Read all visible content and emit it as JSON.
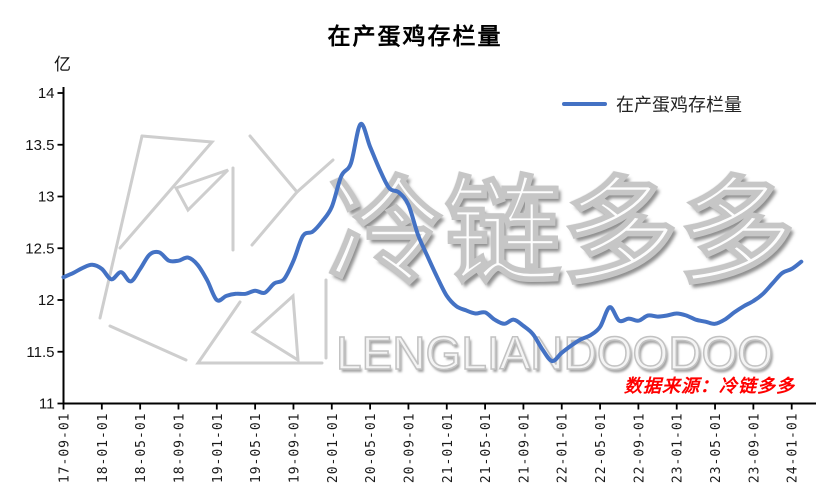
{
  "title": "在产蛋鸡存栏量",
  "y_unit": "亿",
  "legend_label": "在产蛋鸡存栏量",
  "source_note": "数据来源：冷链多多",
  "watermark": {
    "cn": "冷链多多",
    "en": "LENGLIANDOODOO"
  },
  "chart_data": {
    "type": "line",
    "title": "在产蛋鸡存栏量",
    "ylabel": "亿",
    "legend": [
      "在产蛋鸡存栏量"
    ],
    "legend_position": "top-right",
    "grid": false,
    "line_color": "#4472C4",
    "ylim": [
      11,
      14
    ],
    "yticks": [
      11,
      11.5,
      12,
      12.5,
      13,
      13.5,
      14
    ],
    "xtick_labels": [
      "17-09-01",
      "18-01-01",
      "18-05-01",
      "18-09-01",
      "19-01-01",
      "19-05-01",
      "19-09-01",
      "20-01-01",
      "20-05-01",
      "20-09-01",
      "21-01-01",
      "21-05-01",
      "21-09-01",
      "22-01-01",
      "22-05-01",
      "22-09-01",
      "23-01-01",
      "23-05-01",
      "23-09-01",
      "24-01-01"
    ],
    "series": [
      {
        "name": "在产蛋鸡存栏量",
        "months": [
          "2017-09",
          "2017-10",
          "2017-11",
          "2017-12",
          "2018-01",
          "2018-02",
          "2018-03",
          "2018-04",
          "2018-05",
          "2018-06",
          "2018-07",
          "2018-08",
          "2018-09",
          "2018-10",
          "2018-11",
          "2018-12",
          "2019-01",
          "2019-02",
          "2019-03",
          "2019-04",
          "2019-05",
          "2019-06",
          "2019-07",
          "2019-08",
          "2019-09",
          "2019-10",
          "2019-11",
          "2019-12",
          "2020-01",
          "2020-02",
          "2020-03",
          "2020-04",
          "2020-05",
          "2020-06",
          "2020-07",
          "2020-08",
          "2020-09",
          "2020-10",
          "2020-11",
          "2020-12",
          "2021-01",
          "2021-02",
          "2021-03",
          "2021-04",
          "2021-05",
          "2021-06",
          "2021-07",
          "2021-08",
          "2021-09",
          "2021-10",
          "2021-11",
          "2021-12",
          "2022-01",
          "2022-02",
          "2022-03",
          "2022-04",
          "2022-05",
          "2022-06",
          "2022-07",
          "2022-08",
          "2022-09",
          "2022-10",
          "2022-11",
          "2022-12",
          "2023-01",
          "2023-02",
          "2023-03",
          "2023-04",
          "2023-05",
          "2023-06",
          "2023-07",
          "2023-08",
          "2023-09",
          "2023-10",
          "2023-11",
          "2023-12",
          "2024-01",
          "2024-02"
        ],
        "values": [
          12.22,
          12.26,
          12.31,
          12.34,
          12.3,
          12.2,
          12.27,
          12.18,
          12.3,
          12.44,
          12.46,
          12.38,
          12.38,
          12.41,
          12.34,
          12.19,
          12.0,
          12.04,
          12.06,
          12.06,
          12.09,
          12.07,
          12.16,
          12.2,
          12.38,
          12.62,
          12.66,
          12.76,
          12.9,
          13.2,
          13.32,
          13.7,
          13.48,
          13.26,
          13.08,
          13.04,
          12.92,
          12.63,
          12.42,
          12.22,
          12.04,
          11.94,
          11.9,
          11.87,
          11.88,
          11.81,
          11.77,
          11.81,
          11.75,
          11.67,
          11.52,
          11.41,
          11.49,
          11.56,
          11.62,
          11.66,
          11.74,
          11.93,
          11.8,
          11.82,
          11.8,
          11.85,
          11.84,
          11.85,
          11.87,
          11.85,
          11.81,
          11.79,
          11.77,
          11.81,
          11.88,
          11.94,
          11.99,
          12.06,
          12.16,
          12.26,
          12.3,
          12.37
        ]
      }
    ]
  }
}
